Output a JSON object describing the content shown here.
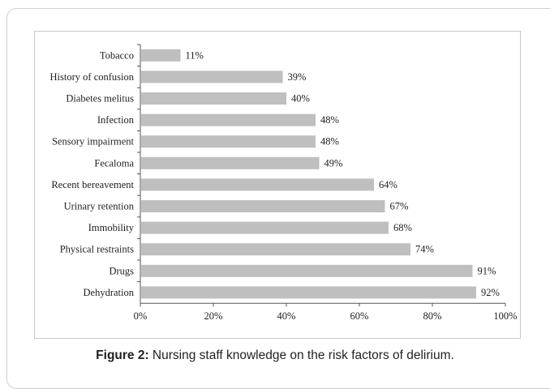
{
  "chart_data": {
    "type": "bar",
    "orientation": "horizontal",
    "categories": [
      "Tobacco",
      "History of confusion",
      "Diabetes melitus",
      "Infection",
      "Sensory impairment",
      "Fecaloma",
      "Recent bereavement",
      "Urinary retention",
      "Immobility",
      "Physical restraints",
      "Drugs",
      "Dehydration"
    ],
    "values": [
      11,
      39,
      40,
      48,
      48,
      49,
      64,
      67,
      68,
      74,
      91,
      92
    ],
    "value_labels": [
      "11%",
      "39%",
      "40%",
      "48%",
      "48%",
      "49%",
      "64%",
      "67%",
      "68%",
      "74%",
      "91%",
      "92%"
    ],
    "xlim": [
      0,
      100
    ],
    "x_ticks": [
      "0%",
      "20%",
      "40%",
      "60%",
      "80%",
      "100%"
    ],
    "grid": false,
    "bar_color": "#bfbfbf"
  },
  "caption": {
    "label": "Figure 2:",
    "text": " Nursing staff knowledge on the risk factors of delirium."
  }
}
